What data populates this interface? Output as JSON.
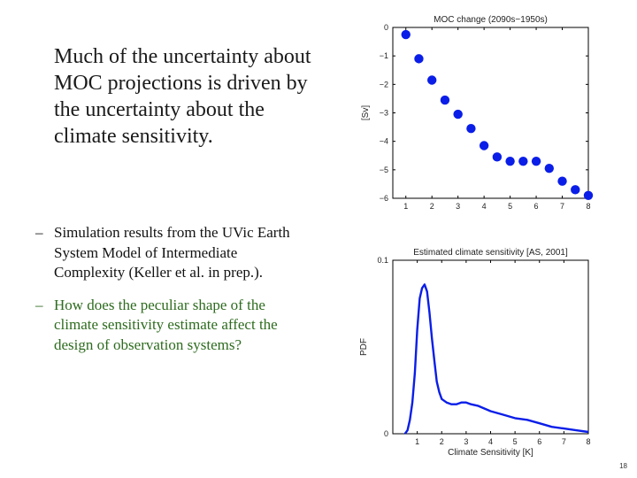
{
  "slide": {
    "headline": "Much of the uncertainty about MOC projections is driven by the uncertainty about the climate sensitivity.",
    "bullets": [
      {
        "dash": "–",
        "text": "Simulation results from the UVic Earth System Model of Intermediate Complexity (Keller et al. in prep.)."
      },
      {
        "dash": "–",
        "text": "How does the peculiar shape of the climate sensitivity estimate affect the design of observation systems?"
      }
    ],
    "page_number": "18",
    "colors": {
      "question_text": "#2d6b1e",
      "data": "#0a1ee8"
    }
  },
  "chart_data": [
    {
      "type": "scatter",
      "title": "MOC change (2090s−1950s)",
      "xlabel": "",
      "ylabel": "[Sv]",
      "xlim": [
        0.5,
        8
      ],
      "ylim": [
        -6,
        0
      ],
      "xticks": [
        1,
        2,
        3,
        4,
        5,
        6,
        7,
        8
      ],
      "yticks": [
        0,
        -1,
        -2,
        -3,
        -4,
        -5,
        -6
      ],
      "grid": false,
      "x": [
        1.0,
        1.5,
        2.0,
        2.5,
        3.0,
        3.5,
        4.0,
        4.5,
        5.0,
        5.5,
        6.0,
        6.5,
        7.0,
        7.5,
        8.0
      ],
      "y": [
        -0.25,
        -1.1,
        -1.85,
        -2.55,
        -3.05,
        -3.55,
        -4.15,
        -4.55,
        -4.7,
        -4.7,
        -4.7,
        -4.95,
        -5.4,
        -5.7,
        -5.9
      ]
    },
    {
      "type": "line",
      "title": "Estimated climate sensitivity [AS, 2001]",
      "xlabel": "Climate Sensitivity [K]",
      "ylabel": "PDF",
      "xlim": [
        0,
        8
      ],
      "ylim": [
        0,
        0.1
      ],
      "xticks": [
        1,
        2,
        3,
        4,
        5,
        6,
        7,
        8
      ],
      "yticks": [
        0.1,
        0
      ],
      "grid": false,
      "x": [
        0.5,
        0.6,
        0.7,
        0.8,
        0.9,
        1.0,
        1.1,
        1.2,
        1.3,
        1.4,
        1.5,
        1.6,
        1.7,
        1.8,
        1.9,
        2.0,
        2.2,
        2.4,
        2.6,
        2.8,
        3.0,
        3.2,
        3.5,
        4.0,
        4.5,
        5.0,
        5.5,
        6.0,
        6.5,
        7.0,
        7.5,
        8.0
      ],
      "y": [
        0.0,
        0.002,
        0.008,
        0.018,
        0.035,
        0.06,
        0.078,
        0.084,
        0.086,
        0.082,
        0.07,
        0.055,
        0.042,
        0.03,
        0.024,
        0.02,
        0.018,
        0.017,
        0.017,
        0.018,
        0.018,
        0.017,
        0.016,
        0.013,
        0.011,
        0.009,
        0.008,
        0.006,
        0.004,
        0.003,
        0.002,
        0.001
      ]
    }
  ]
}
